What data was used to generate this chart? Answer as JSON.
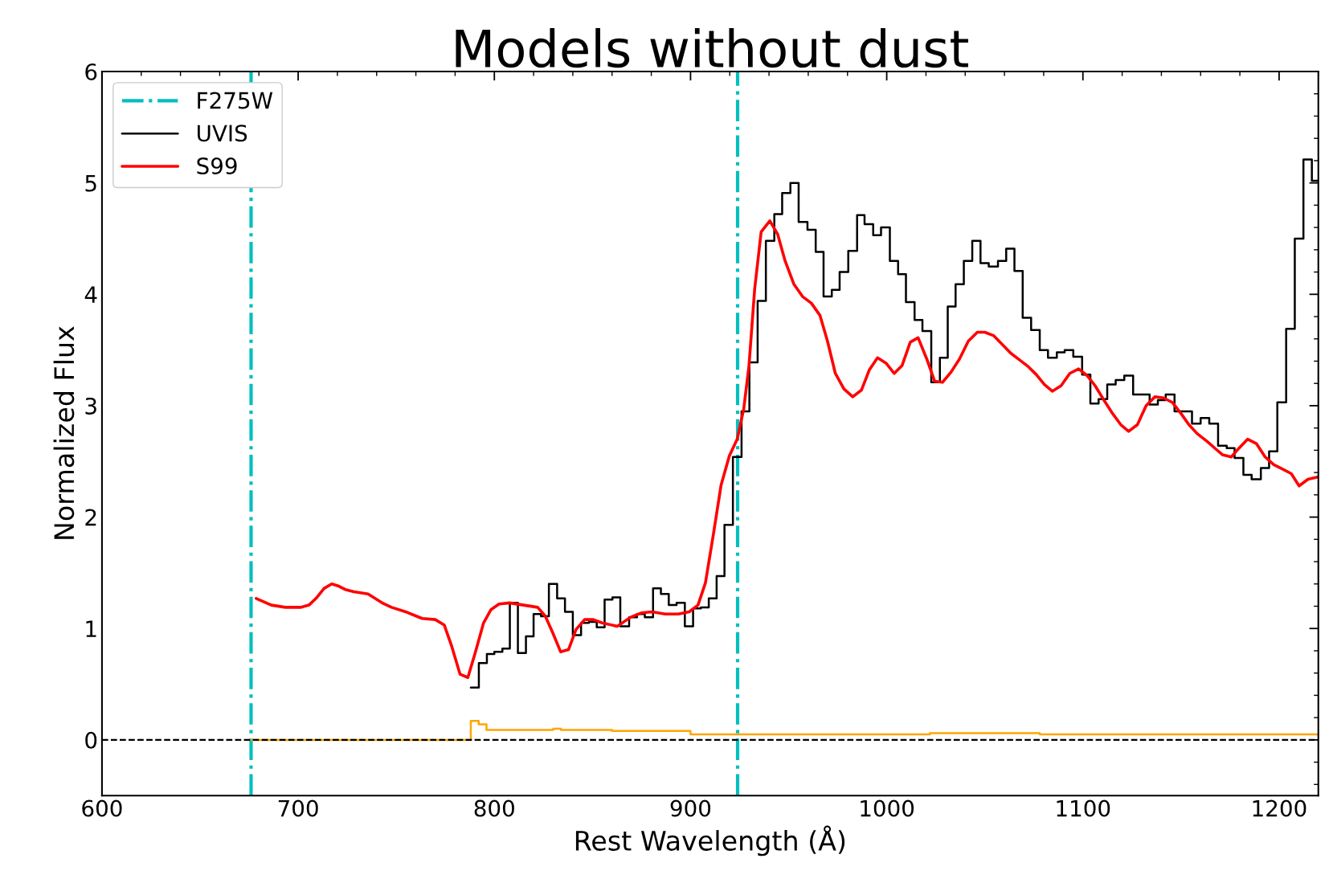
{
  "chart_data": {
    "type": "step",
    "title": "Models without dust",
    "xlabel": "Rest Wavelength (Å)",
    "ylabel": "Normalized Flux",
    "xlim": [
      600,
      1220
    ],
    "xticks": [
      600,
      700,
      800,
      900,
      1000,
      1100,
      1200
    ],
    "ylim": [
      -0.5,
      6
    ],
    "yticks": [
      0,
      1,
      2,
      3,
      4,
      5,
      6
    ],
    "grid": false,
    "legend": "top left",
    "ref_lines": [
      {
        "axis": "x",
        "value": 676,
        "label": "F275W",
        "color": "#00bfbf",
        "line_style": "dashdot"
      },
      {
        "axis": "x",
        "value": 924,
        "label": null,
        "color": "#00bfbf",
        "line_style": "dashdot"
      },
      {
        "axis": "y",
        "value": 0,
        "label": null,
        "color": "#000000",
        "line_style": "dashed"
      }
    ],
    "series": [
      {
        "name": "UVIS",
        "color": "#000000",
        "x": [
          788,
          792.1,
          796.2,
          800,
          804.1,
          807.9,
          812,
          816.1,
          820,
          823.8,
          827.8,
          832,
          836,
          840,
          844.2,
          848.2,
          852.2,
          856.2,
          860.2,
          864.2,
          868.7,
          872.7,
          876.7,
          880.9,
          884.9,
          888.9,
          892.9,
          897.1,
          901.3,
          905.3,
          909.3,
          913.3,
          917.3,
          921.6,
          926,
          930,
          934.2,
          938.4,
          942.7,
          946.7,
          950.9,
          955.1,
          959.6,
          963.8,
          967.8,
          972,
          976,
          980.4,
          984.9,
          988.7,
          993.1,
          997.1,
          1001.6,
          1005.8,
          1009.8,
          1014.2,
          1018.2,
          1022.7,
          1027.1,
          1031.1,
          1035.1,
          1039.3,
          1043.6,
          1047.8,
          1052,
          1056.7,
          1060.9,
          1065.1,
          1069.3,
          1073.6,
          1078,
          1082.2,
          1086.7,
          1090.7,
          1095.1,
          1099.6,
          1103.8,
          1108,
          1112.4,
          1116.7,
          1121.1,
          1125.6,
          1134,
          1138.2,
          1142.2,
          1146.7,
          1155.6,
          1160,
          1164.4,
          1168.9,
          1173.3,
          1177.3,
          1181.8,
          1186,
          1190.7,
          1194.9,
          1199.1,
          1203.6,
          1208,
          1212.4,
          1216.7,
          1220
        ],
        "values": [
          0.47,
          0.69,
          0.77,
          0.79,
          0.82,
          1.23,
          0.78,
          0.93,
          1.13,
          1.11,
          1.4,
          1.27,
          1.15,
          0.94,
          1.05,
          1.06,
          1.01,
          1.26,
          1.28,
          1.02,
          1.1,
          1.13,
          1.1,
          1.36,
          1.31,
          1.21,
          1.23,
          1.02,
          1.18,
          1.19,
          1.27,
          1.47,
          1.93,
          2.54,
          2.95,
          3.39,
          3.94,
          4.48,
          4.72,
          4.91,
          5.0,
          4.65,
          4.58,
          4.38,
          3.98,
          4.04,
          4.2,
          4.39,
          4.71,
          4.63,
          4.53,
          4.6,
          4.3,
          4.18,
          3.93,
          3.77,
          3.67,
          3.21,
          3.43,
          3.89,
          4.09,
          4.3,
          4.48,
          4.28,
          4.25,
          4.3,
          4.41,
          4.21,
          3.79,
          3.68,
          3.5,
          3.43,
          3.48,
          3.5,
          3.44,
          3.28,
          3.02,
          3.06,
          3.19,
          3.23,
          3.27,
          3.1,
          3.01,
          3.05,
          3.1,
          2.95,
          2.84,
          2.89,
          2.84,
          2.64,
          2.62,
          2.53,
          2.38,
          2.34,
          2.44,
          2.59,
          3.03,
          3.69,
          4.5,
          5.21,
          5.02,
          5.02
        ]
      },
      {
        "name": "S99",
        "type": "line",
        "color": "#ff0000",
        "x": [
          678.6,
          686.3,
          693.5,
          701.2,
          705.5,
          709.1,
          713.2,
          717.1,
          720.7,
          724,
          728.4,
          735.6,
          742.8,
          747.6,
          754.8,
          763.2,
          769.9,
          774.5,
          778.1,
          782.5,
          786.5,
          790.4,
          794.5,
          798.3,
          802.4,
          807.7,
          814.9,
          822.1,
          826,
          829.8,
          833.8,
          837.8,
          841.6,
          846,
          850.4,
          854.9,
          862.7,
          869.3,
          874.9,
          880.4,
          887.1,
          893.8,
          899.3,
          903.8,
          907.6,
          911.6,
          915.6,
          919.8,
          923.8,
          927.1,
          929.8,
          932.7,
          936,
          940.4,
          944.4,
          948.2,
          952.7,
          957.1,
          961.6,
          966,
          969.8,
          973.8,
          978.2,
          982.7,
          987.1,
          991.1,
          995.3,
          999.8,
          1003.8,
          1007.8,
          1012,
          1016,
          1020.4,
          1024.4,
          1028.4,
          1032.7,
          1037.1,
          1041.6,
          1046.2,
          1050,
          1054.4,
          1058.9,
          1063.3,
          1067.8,
          1072.2,
          1076.2,
          1080.4,
          1084.4,
          1088.9,
          1093.3,
          1097.8,
          1102.2,
          1106.2,
          1110.7,
          1115.1,
          1119.3,
          1123.3,
          1127.8,
          1132.2,
          1136.7,
          1141.1,
          1145.6,
          1150,
          1154,
          1158.2,
          1163.3,
          1167.8,
          1171.1,
          1175.6,
          1179.6,
          1184,
          1188.4,
          1192.9,
          1197.3,
          1201.8,
          1206.2,
          1210.2,
          1214.7,
          1219.6
        ],
        "values": [
          1.27,
          1.21,
          1.19,
          1.19,
          1.21,
          1.27,
          1.36,
          1.4,
          1.38,
          1.35,
          1.33,
          1.31,
          1.23,
          1.19,
          1.15,
          1.09,
          1.08,
          1.03,
          0.85,
          0.59,
          0.56,
          0.79,
          1.05,
          1.17,
          1.22,
          1.23,
          1.21,
          1.19,
          1.11,
          0.96,
          0.79,
          0.81,
          0.99,
          1.08,
          1.08,
          1.05,
          1.02,
          1.1,
          1.14,
          1.15,
          1.13,
          1.13,
          1.15,
          1.21,
          1.41,
          1.84,
          2.29,
          2.55,
          2.7,
          2.97,
          3.36,
          4.05,
          4.56,
          4.66,
          4.54,
          4.3,
          4.09,
          3.98,
          3.92,
          3.81,
          3.58,
          3.29,
          3.15,
          3.08,
          3.14,
          3.32,
          3.43,
          3.38,
          3.29,
          3.36,
          3.57,
          3.61,
          3.42,
          3.22,
          3.21,
          3.3,
          3.42,
          3.58,
          3.66,
          3.66,
          3.63,
          3.55,
          3.47,
          3.41,
          3.35,
          3.28,
          3.19,
          3.13,
          3.18,
          3.29,
          3.33,
          3.27,
          3.18,
          3.05,
          2.93,
          2.83,
          2.77,
          2.83,
          3.0,
          3.08,
          3.07,
          3.03,
          2.93,
          2.83,
          2.75,
          2.68,
          2.61,
          2.56,
          2.54,
          2.62,
          2.7,
          2.66,
          2.54,
          2.47,
          2.43,
          2.39,
          2.28,
          2.34,
          2.36
        ]
      },
      {
        "color": "#ffa500",
        "x": [
          676,
          788,
          792,
          796,
          830,
          834,
          860,
          900,
          1022,
          1078,
          1220
        ],
        "values": [
          0.0,
          0.17,
          0.14,
          0.09,
          0.1,
          0.09,
          0.08,
          0.05,
          0.06,
          0.05,
          0.04
        ]
      }
    ]
  }
}
